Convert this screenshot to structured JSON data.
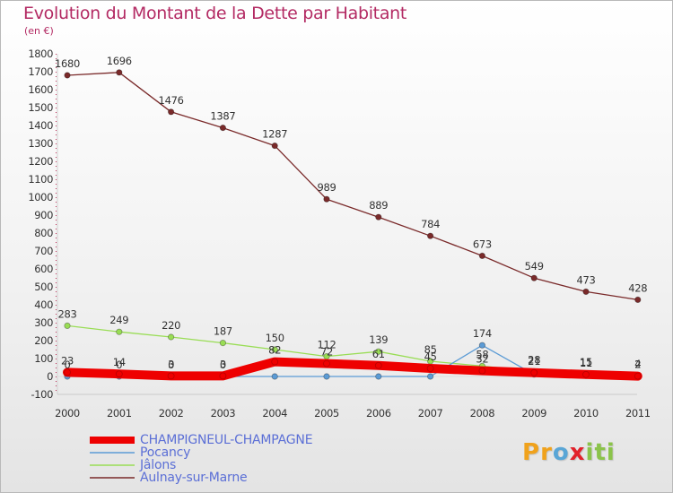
{
  "header": {
    "title": "Evolution du Montant de la Dette par Habitant",
    "unit": "(en €)"
  },
  "logo": {
    "text": "Proxiti",
    "letters": [
      "P",
      "r",
      "o",
      "x",
      "i",
      "t",
      "i"
    ],
    "colors": [
      "#f0a21c",
      "#f0a21c",
      "#5aa6d6",
      "#e2222b",
      "#8bc34a",
      "#8bc34a",
      "#8bc34a"
    ]
  },
  "chart_data": {
    "type": "line",
    "title": "Evolution du Montant de la Dette par Habitant",
    "ylabel": "(en €)",
    "xlabel": "",
    "categories": [
      "2000",
      "2001",
      "2002",
      "2003",
      "2004",
      "2005",
      "2006",
      "2007",
      "2008",
      "2009",
      "2010",
      "2011"
    ],
    "ylim": [
      -100,
      1800
    ],
    "yticks": [
      -100,
      0,
      100,
      200,
      300,
      400,
      500,
      600,
      700,
      800,
      900,
      1000,
      1100,
      1200,
      1300,
      1400,
      1500,
      1600,
      1700,
      1800
    ],
    "grid": false,
    "legend_position": "bottom-left",
    "series": [
      {
        "name": "CHAMPIGNEUL-CHAMPAGNE",
        "color": "#ee0000",
        "values": [
          23,
          14,
          3,
          3,
          82,
          72,
          61,
          45,
          32,
          21,
          11,
          2
        ],
        "labels": [
          "23",
          "14",
          "3",
          "3",
          "82",
          "72",
          "61",
          "45",
          "32",
          "21",
          "11",
          "2"
        ]
      },
      {
        "name": "Pocancy",
        "color": "#5b9bd5",
        "values": [
          0,
          0,
          0,
          0,
          0,
          0,
          0,
          0,
          174,
          11,
          4,
          2
        ],
        "labels": [
          "0",
          "0",
          "0",
          "0",
          "",
          "",
          "",
          "",
          "174",
          "",
          "",
          "2"
        ]
      },
      {
        "name": "Jâlons",
        "color": "#99dd55",
        "values": [
          283,
          249,
          220,
          187,
          150,
          112,
          139,
          85,
          58,
          28,
          15,
          4
        ],
        "labels": [
          "283",
          "249",
          "220",
          "187",
          "150",
          "112",
          "139",
          "85",
          "58",
          "28",
          "15",
          "4"
        ]
      },
      {
        "name": "Aulnay-sur-Marne",
        "color": "#7a2a2a",
        "values": [
          1680,
          1696,
          1476,
          1387,
          1287,
          989,
          889,
          784,
          673,
          549,
          473,
          428
        ],
        "labels": [
          "1680",
          "1696",
          "1476",
          "1387",
          "1287",
          "989",
          "889",
          "784",
          "673",
          "549",
          "473",
          "428"
        ]
      }
    ]
  }
}
